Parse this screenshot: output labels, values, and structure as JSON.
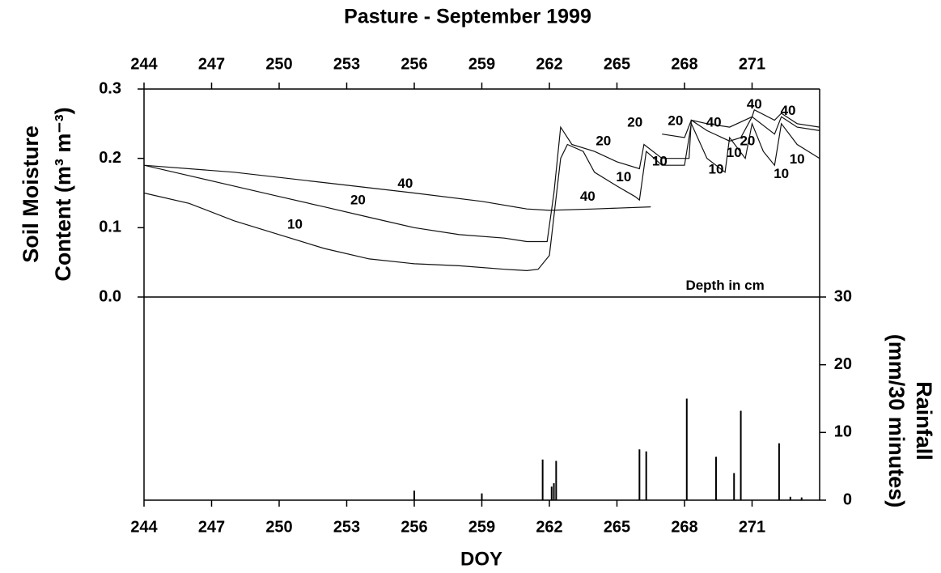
{
  "chart_data": [
    {
      "type": "line",
      "title": "Pasture - September 1999",
      "ylabel": [
        "Soil Moisture",
        "Content (m³ m⁻³)"
      ],
      "xlim": [
        244,
        274
      ],
      "xticks": [
        244,
        247,
        250,
        253,
        256,
        259,
        262,
        265,
        268,
        271
      ],
      "ylim": [
        0,
        0.3
      ],
      "yticks": [
        {
          "value": 0,
          "label": "0.0"
        },
        0.1,
        0.2,
        0.3
      ],
      "series": [
        {
          "color": "#111",
          "x": [
            244,
            246,
            248,
            250,
            252,
            254,
            256,
            258,
            260,
            261,
            261.5,
            262,
            262.5,
            262.8,
            263.5,
            264,
            265,
            265.8,
            266,
            266.3,
            267,
            268,
            268.3,
            269,
            269.8,
            270,
            270.7,
            271,
            271.5,
            272,
            272.3,
            273,
            274
          ],
          "values": [
            0.15,
            0.135,
            0.11,
            0.09,
            0.07,
            0.055,
            0.048,
            0.045,
            0.04,
            0.038,
            0.04,
            0.06,
            0.2,
            0.22,
            0.21,
            0.18,
            0.16,
            0.145,
            0.14,
            0.21,
            0.19,
            0.19,
            0.25,
            0.2,
            0.18,
            0.23,
            0.2,
            0.25,
            0.21,
            0.19,
            0.25,
            0.22,
            0.2
          ]
        },
        {
          "color": "#111",
          "x": [
            244,
            246,
            248,
            250,
            252,
            254,
            256,
            258,
            260,
            261,
            261.9,
            262.2,
            262.5,
            263,
            264,
            265,
            266,
            266.2,
            267,
            268.2,
            268.3,
            269,
            270,
            270.5,
            271,
            272,
            272.3,
            273,
            274
          ],
          "values": [
            0.19,
            0.175,
            0.16,
            0.145,
            0.13,
            0.115,
            0.1,
            0.09,
            0.085,
            0.08,
            0.08,
            0.15,
            0.245,
            0.22,
            0.21,
            0.195,
            0.185,
            0.22,
            0.2,
            0.2,
            0.255,
            0.24,
            0.225,
            0.23,
            0.26,
            0.235,
            0.26,
            0.245,
            0.24
          ]
        },
        {
          "color": "#111",
          "x": [
            244,
            248,
            252,
            256,
            259,
            261,
            262,
            264,
            266.5,
            266.55,
            267,
            268,
            268.3,
            269,
            270,
            271,
            271.1,
            272,
            272.3,
            273,
            274
          ],
          "values": [
            0.19,
            0.18,
            0.165,
            0.15,
            0.138,
            0.127,
            0.125,
            0.127,
            0.13,
            null,
            0.235,
            0.23,
            0.255,
            0.25,
            0.245,
            0.26,
            0.27,
            0.255,
            0.265,
            0.25,
            0.245
          ]
        }
      ],
      "annotations": [
        {
          "text": "40",
          "x": 255.6,
          "y": 0.163
        },
        {
          "text": "20",
          "x": 253.5,
          "y": 0.139
        },
        {
          "text": "10",
          "x": 250.7,
          "y": 0.104
        },
        {
          "text": "40",
          "x": 263.7,
          "y": 0.144
        },
        {
          "text": "20",
          "x": 264.4,
          "y": 0.224
        },
        {
          "text": "10",
          "x": 265.3,
          "y": 0.172
        },
        {
          "text": "20",
          "x": 265.8,
          "y": 0.251
        },
        {
          "text": "10",
          "x": 266.9,
          "y": 0.195
        },
        {
          "text": "20",
          "x": 267.6,
          "y": 0.253
        },
        {
          "text": "40",
          "x": 269.3,
          "y": 0.251
        },
        {
          "text": "10",
          "x": 269.4,
          "y": 0.183
        },
        {
          "text": "10",
          "x": 270.2,
          "y": 0.207
        },
        {
          "text": "20",
          "x": 270.8,
          "y": 0.224
        },
        {
          "text": "40",
          "x": 271.1,
          "y": 0.277
        },
        {
          "text": "40",
          "x": 272.6,
          "y": 0.268
        },
        {
          "text": "10",
          "x": 273.0,
          "y": 0.198
        },
        {
          "text": "10",
          "x": 272.3,
          "y": 0.177
        },
        {
          "text": "Depth in cm",
          "x": 269.8,
          "y": 0.016
        }
      ]
    },
    {
      "type": "bar",
      "xlabel": "DOY",
      "y2label": [
        "Rainfall",
        "(mm/30 minutes)"
      ],
      "xlim": [
        244,
        274
      ],
      "xticks": [
        244,
        247,
        250,
        253,
        256,
        259,
        262,
        265,
        268,
        271
      ],
      "y2lim": [
        0,
        30
      ],
      "y2ticks": [
        0,
        10,
        20,
        30
      ],
      "series": [
        {
          "color": "#000",
          "axis": "y2",
          "x": [
            256,
            259,
            261.7,
            262.1,
            262.2,
            262.3,
            266.0,
            266.3,
            268.1,
            269.4,
            270.2,
            270.5,
            272.2,
            272.7,
            273.2
          ],
          "values": [
            1.4,
            1.0,
            6.0,
            2.0,
            2.5,
            5.8,
            7.5,
            7.2,
            15.0,
            6.4,
            4.0,
            13.2,
            8.4,
            0.5,
            0.4
          ]
        }
      ]
    }
  ]
}
